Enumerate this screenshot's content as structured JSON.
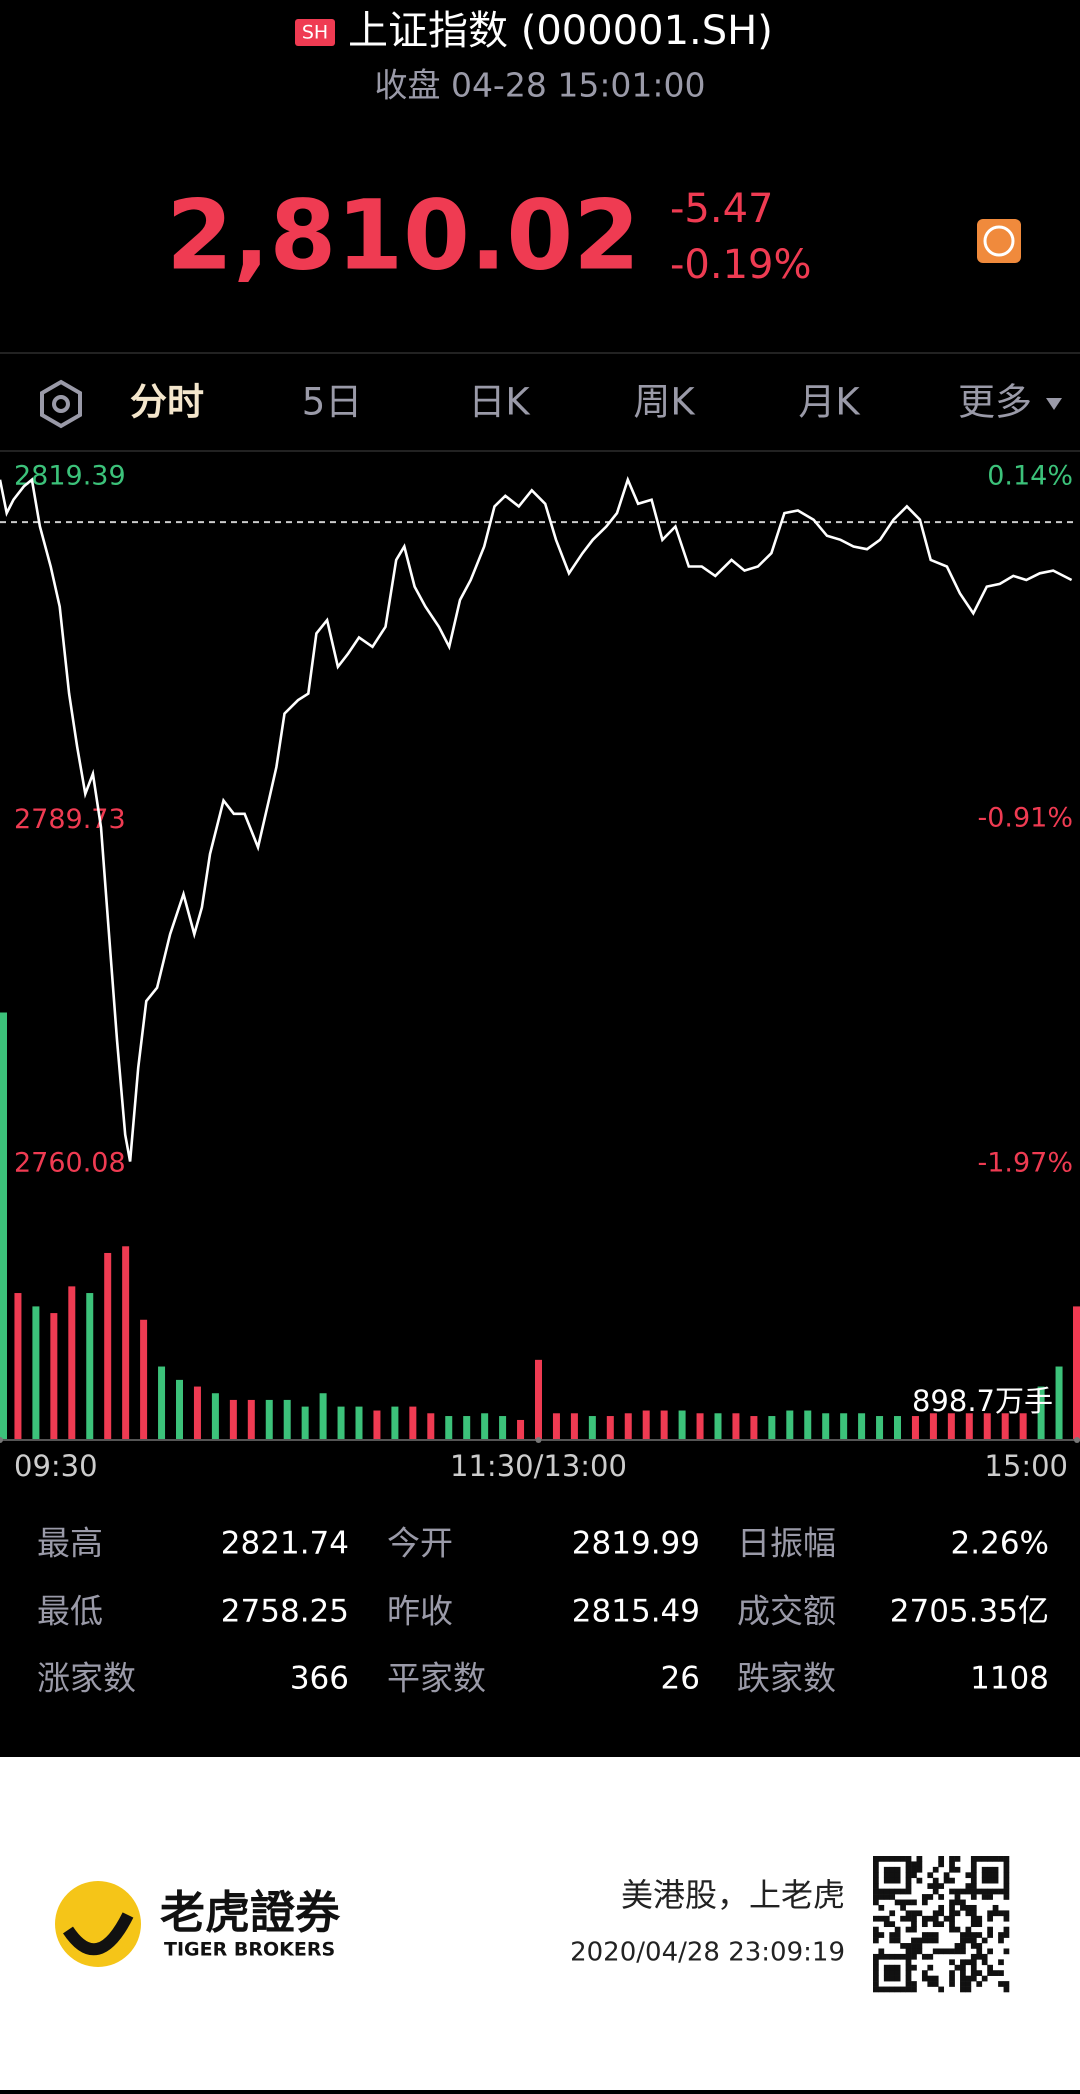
{
  "header": {
    "badge": "SH",
    "title": "上证指数 (000001.SH)",
    "status": "收盘 04-28 15:01:00",
    "price": "2,810.02",
    "change": "-5.47",
    "change_pct": "-0.19%"
  },
  "tabs": [
    "分时",
    "5日",
    "日K",
    "周K",
    "月K",
    "更多"
  ],
  "chart_data": {
    "type": "line",
    "color": "#ffffff",
    "up_color": "#ef3b52",
    "down_color": "#3cc27a",
    "x": [
      0,
      1.5,
      3,
      5.3,
      7.1,
      8.9,
      11.3,
      13.3,
      15.4,
      17.2,
      19,
      20.7,
      22.5,
      24.3,
      26.1,
      27.9,
      29,
      30.8,
      32.6,
      35,
      37.9,
      40.9,
      43.3,
      45,
      46.8,
      49.8,
      52.1,
      54.5,
      57.5,
      59.9,
      61.6,
      63.4,
      66.4,
      68.7,
      70.5,
      72.9,
      75.3,
      77.6,
      80,
      83,
      85.9,
      88.3,
      90.1,
      92.4,
      94.8,
      97.8,
      100.1,
      102.5,
      104.9,
      107.9,
      110.2,
      112.6,
      115.6,
      118.5,
      121.5,
      123.9,
      126.8,
      129.8,
      132.1,
      135.1,
      137.5,
      139.9,
      142.2,
      145.2,
      147.6,
      150.5,
      153.5,
      156.4,
      159.4,
      163,
      165.9,
      168.9,
      171.9,
      174.8,
      177.8,
      181.3,
      184.3,
      187.3,
      190.2,
      193.2,
      196.1,
      199.1,
      202.1,
      205,
      207.4,
      211,
      213.9,
      216.9,
      219.9,
      222.8,
      225.8,
      228.7,
      231.7,
      234.7,
      238.8
    ],
    "values": [
      2819.16,
      2816.27,
      2817.43,
      2818.58,
      2819.16,
      2815.12,
      2811.66,
      2808.2,
      2800.69,
      2796.08,
      2792.04,
      2793.77,
      2789.15,
      2779.92,
      2770.69,
      2762.61,
      2760.3,
      2768.38,
      2774.15,
      2775.3,
      2779.92,
      2783.38,
      2779.92,
      2782.23,
      2786.84,
      2791.46,
      2790.31,
      2790.31,
      2787.42,
      2791.46,
      2794.35,
      2798.96,
      2800.12,
      2800.69,
      2805.89,
      2807.04,
      2803,
      2804.15,
      2805.54,
      2804.73,
      2806.46,
      2812.23,
      2813.39,
      2809.93,
      2808.2,
      2806.46,
      2804.73,
      2808.77,
      2810.5,
      2813.39,
      2816.85,
      2817.77,
      2816.85,
      2818.24,
      2817.08,
      2813.97,
      2811.08,
      2812.81,
      2813.97,
      2815.12,
      2816.27,
      2819.16,
      2817.08,
      2817.43,
      2813.97,
      2815.12,
      2811.66,
      2811.66,
      2810.85,
      2812.23,
      2811.31,
      2811.66,
      2812.81,
      2816.27,
      2816.5,
      2815.7,
      2814.31,
      2813.97,
      2813.39,
      2813.16,
      2813.97,
      2815.7,
      2816.85,
      2815.7,
      2812.23,
      2811.66,
      2809.35,
      2807.62,
      2809.93,
      2810.16,
      2810.85,
      2810.5,
      2811.08,
      2811.31,
      2810.5
    ],
    "xlim": [
      0,
      240
    ],
    "xticks": [
      {
        "value": 0,
        "label": "09:30"
      },
      {
        "value": 120,
        "label": "11:30/13:00"
      },
      {
        "value": 240,
        "label": "15:00"
      }
    ],
    "ylim": [
      2760.08,
      2819.39
    ],
    "yticks": [
      2819.39,
      2789.73,
      2760.08
    ],
    "y2lim": [
      -1.97,
      0.14
    ],
    "y2ticks": [
      {
        "value": 0.14,
        "label": "0.14%"
      },
      {
        "value": -0.91,
        "label": "-0.91%"
      },
      {
        "value": -1.97,
        "label": "-1.97%"
      }
    ],
    "prev_close": 2815.49,
    "volume": {
      "label": "898.7万手",
      "vlim": [
        0,
        898.7
      ],
      "x": [
        0,
        4,
        8,
        12,
        16,
        20,
        24,
        28,
        32,
        36,
        40,
        44,
        48,
        52,
        56,
        60,
        64,
        68,
        72,
        76,
        80,
        84,
        88,
        92,
        96,
        100,
        104,
        108,
        112,
        116,
        120,
        124,
        128,
        132,
        136,
        140,
        144,
        148,
        152,
        156,
        160,
        164,
        168,
        172,
        176,
        180,
        184,
        188,
        192,
        196,
        200,
        204,
        208,
        212,
        216,
        220,
        224,
        228,
        232,
        236,
        240
      ],
      "values": [
        1856,
        638,
        580,
        551,
        667,
        638,
        812,
        841,
        522,
        319,
        261,
        232,
        203,
        174,
        174,
        174,
        174,
        145,
        203,
        145,
        145,
        128,
        145,
        145,
        116,
        104,
        104,
        116,
        104,
        87,
        348,
        116,
        116,
        104,
        104,
        116,
        128,
        128,
        128,
        116,
        116,
        116,
        104,
        104,
        128,
        128,
        116,
        116,
        116,
        104,
        104,
        104,
        116,
        116,
        116,
        116,
        116,
        116,
        232,
        319,
        580
      ],
      "directions": [
        "d",
        "u",
        "d",
        "u",
        "u",
        "d",
        "u",
        "u",
        "u",
        "d",
        "d",
        "u",
        "d",
        "u",
        "u",
        "d",
        "d",
        "d",
        "d",
        "d",
        "d",
        "u",
        "d",
        "u",
        "u",
        "d",
        "d",
        "d",
        "d",
        "u",
        "u",
        "u",
        "u",
        "d",
        "u",
        "u",
        "u",
        "u",
        "d",
        "u",
        "d",
        "u",
        "u",
        "d",
        "d",
        "d",
        "d",
        "d",
        "d",
        "d",
        "d",
        "u",
        "u",
        "u",
        "u",
        "u",
        "u",
        "u",
        "d",
        "d",
        "u"
      ]
    }
  },
  "stats": [
    {
      "label": "最高",
      "value": "2821.74"
    },
    {
      "label": "今开",
      "value": "2819.99"
    },
    {
      "label": "日振幅",
      "value": "2.26%"
    },
    {
      "label": "最低",
      "value": "2758.25"
    },
    {
      "label": "昨收",
      "value": "2815.49"
    },
    {
      "label": "成交额",
      "value": "2705.35亿"
    },
    {
      "label": "涨家数",
      "value": "366"
    },
    {
      "label": "平家数",
      "value": "26"
    },
    {
      "label": "跌家数",
      "value": "1108"
    }
  ],
  "footer": {
    "brand": "老虎證券",
    "brand_en": "TIGER BROKERS",
    "slogan": "美港股，上老虎",
    "timestamp": "2020/04/28 23:09:19"
  }
}
